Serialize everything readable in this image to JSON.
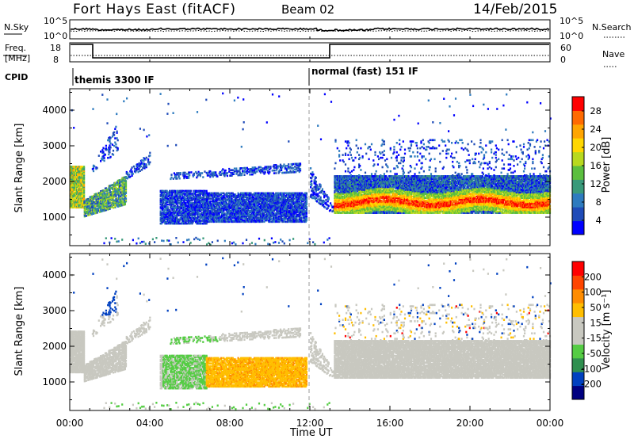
{
  "header": {
    "station": "Fort Hays East (fitACF)",
    "beam": "Beam 02",
    "date": "14/Feb/2015"
  },
  "noise_panel": {
    "left_label": "N.Sky",
    "left_ticks": [
      "10^5",
      "10^0"
    ],
    "right_ticks": [
      "10^5",
      "10^0"
    ],
    "right_label": "N.Search"
  },
  "freq_panel": {
    "left_label_1": "Freq.",
    "left_label_2": "[MHz]",
    "left_ticks": [
      "18",
      "8"
    ],
    "right_ticks": [
      "60",
      "0"
    ],
    "right_label": "Nave"
  },
  "cpid_panel": {
    "label": "CPID",
    "segments": [
      "themis 3300 IF",
      "normal (fast) 151 IF"
    ]
  },
  "colors": {
    "power_scale": [
      "#0000ff",
      "#1f4bb8",
      "#2e7bbf",
      "#3a9a7a",
      "#5bbf3f",
      "#b8d91f",
      "#ffd700",
      "#ffa500",
      "#ff6a00",
      "#ff0000"
    ],
    "velocity_scale": [
      "#ff0000",
      "#ff4500",
      "#ff8c00",
      "#ffbe00",
      "#c8c8c0",
      "#c8c8c0",
      "#55cc44",
      "#2f8f4f",
      "#0040c0",
      "#000080"
    ],
    "grey_scatter": "#c8c8c0"
  },
  "chart_data": [
    {
      "type": "heatmap",
      "name": "power",
      "ylabel": "Slant Range [km]",
      "y_ticks": [
        "1000",
        "2000",
        "3000",
        "4000"
      ],
      "ylim": [
        200,
        4600
      ],
      "xlim": [
        0,
        24
      ],
      "colorbar": {
        "label": "Power [dB]",
        "ticks": [
          "28",
          "24",
          "20",
          "16",
          "12",
          "8",
          "4"
        ],
        "range": [
          0,
          31
        ]
      }
    },
    {
      "type": "heatmap",
      "name": "velocity",
      "ylabel": "Slant Range [km]",
      "y_ticks": [
        "1000",
        "2000",
        "3000",
        "4000"
      ],
      "ylim": [
        200,
        4600
      ],
      "xlim": [
        0,
        24
      ],
      "colorbar": {
        "label": "Velocity [m s⁻¹]",
        "ticks": [
          "200",
          "100",
          "50",
          "15",
          "-15",
          "-50",
          "-100",
          "-200"
        ]
      }
    }
  ],
  "x_axis": {
    "ticks": [
      "00:00",
      "04:00",
      "08:00",
      "12:00",
      "16:00",
      "20:00",
      "00:00"
    ],
    "label": "Time UT"
  }
}
